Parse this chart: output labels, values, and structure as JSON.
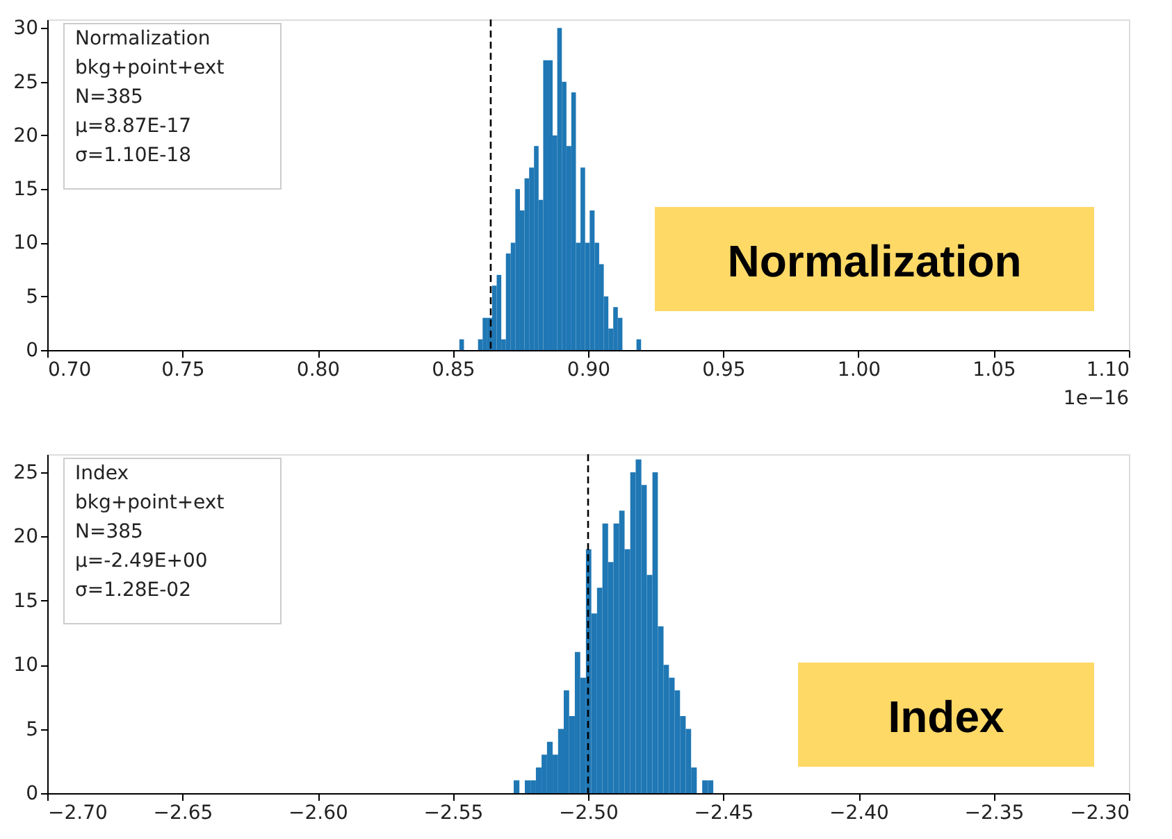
{
  "chart_data": [
    {
      "type": "histogram",
      "color": "#1f77b4",
      "bins": [
        0.8524,
        0.8541,
        0.8558,
        0.8576,
        0.8593,
        0.861,
        0.8627,
        0.8645,
        0.8662,
        0.8679,
        0.8696,
        0.8714,
        0.8731,
        0.8748,
        0.8765,
        0.8782,
        0.88,
        0.8817,
        0.8834,
        0.8851,
        0.8869,
        0.8886,
        0.8903,
        0.892,
        0.8938,
        0.8955,
        0.8972,
        0.8989,
        0.9006,
        0.9024,
        0.9041,
        0.9058,
        0.9075,
        0.9093,
        0.911,
        0.9127,
        0.9144,
        0.9162,
        0.9179,
        0.9196
      ],
      "values": [
        1,
        0,
        0,
        0,
        1,
        3,
        3,
        6,
        7,
        1,
        9,
        10,
        15,
        13,
        16,
        17,
        19,
        14,
        27,
        27,
        20,
        30,
        25,
        19,
        24,
        10,
        17,
        10,
        13,
        10,
        8,
        5,
        2,
        4,
        3,
        0,
        0,
        0,
        1
      ],
      "xlim": [
        0.7,
        1.1
      ],
      "xticks": [
        {
          "value": 0.7,
          "label": "0.70"
        },
        {
          "value": 0.75,
          "label": "0.75"
        },
        {
          "value": 0.8,
          "label": "0.80"
        },
        {
          "value": 0.85,
          "label": "0.85"
        },
        {
          "value": 0.9,
          "label": "0.90"
        },
        {
          "value": 0.95,
          "label": "0.95"
        },
        {
          "value": 1.0,
          "label": "1.00"
        },
        {
          "value": 1.05,
          "label": "1.05"
        },
        {
          "value": 1.1,
          "label": "1.10"
        }
      ],
      "ylim": [
        0,
        30.8
      ],
      "yticks": [
        0,
        5,
        10,
        15,
        20,
        25,
        30
      ],
      "ref_lines": [
        {
          "axis": "x",
          "value": 0.864,
          "color": "#000000",
          "line_style": "dashed"
        }
      ],
      "grid": false,
      "annotations": [
        "Normalization\n bkg+point+ext\nN=385\nμ=8.87E-17\nσ=1.10E-18",
        "1e−16",
        "Normalization"
      ]
    },
    {
      "type": "histogram",
      "color": "#1f77b4",
      "bins": [
        -2.5275,
        -2.5254,
        -2.5234,
        -2.5213,
        -2.5193,
        -2.5172,
        -2.5152,
        -2.5131,
        -2.5111,
        -2.509,
        -2.507,
        -2.5049,
        -2.5029,
        -2.5008,
        -2.4988,
        -2.4967,
        -2.4947,
        -2.4926,
        -2.4906,
        -2.4885,
        -2.4865,
        -2.4844,
        -2.4824,
        -2.4803,
        -2.4783,
        -2.4762,
        -2.4742,
        -2.4721,
        -2.4701,
        -2.468,
        -2.466,
        -2.4639,
        -2.4619,
        -2.4598,
        -2.4578,
        -2.4557,
        -2.4537
      ],
      "values": [
        1,
        0,
        1,
        1,
        2,
        3,
        4,
        3,
        5,
        8,
        6,
        11,
        9,
        19,
        14,
        16,
        21,
        18,
        21,
        22,
        19,
        25,
        26,
        24,
        17,
        25,
        13,
        10,
        9,
        8,
        6,
        5,
        2,
        0,
        1,
        1
      ],
      "xlim": [
        -2.7,
        -2.3
      ],
      "xticks": [
        {
          "value": -2.7,
          "label": "−2.70"
        },
        {
          "value": -2.65,
          "label": "−2.65"
        },
        {
          "value": -2.6,
          "label": "−2.60"
        },
        {
          "value": -2.55,
          "label": "−2.55"
        },
        {
          "value": -2.5,
          "label": "−2.50"
        },
        {
          "value": -2.45,
          "label": "−2.45"
        },
        {
          "value": -2.4,
          "label": "−2.40"
        },
        {
          "value": -2.35,
          "label": "−2.35"
        },
        {
          "value": -2.3,
          "label": "−2.30"
        }
      ],
      "ylim": [
        0,
        26.4
      ],
      "yticks": [
        0,
        5,
        10,
        15,
        20,
        25
      ],
      "ref_lines": [
        {
          "axis": "x",
          "value": -2.5,
          "color": "#000000",
          "line_style": "dashed"
        }
      ],
      "grid": false,
      "annotations": [
        "Index\nbkg+point+ext\nN=385\nμ=-2.49E+00\nσ=1.28E-02",
        "Index"
      ]
    }
  ]
}
